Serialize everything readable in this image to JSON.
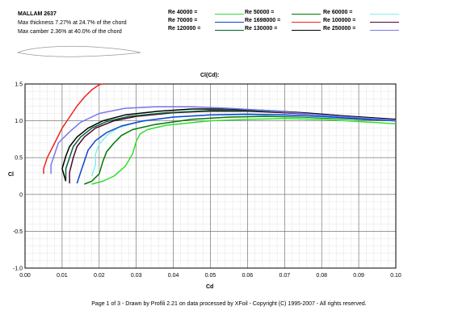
{
  "header": {
    "name": "MALLAM 2637",
    "thickness": "Max thickness 7.27% at 24.7% of the chord",
    "camber": "Max camber 2.36% at 40.0% of the chord"
  },
  "footer": "Page 1 of 3   -   Drawn by Profili 2.21 on data processed by  XFoil - Copyright (C) 1995-2007 - All rights reserved.",
  "chart_data": {
    "type": "line",
    "title": "Cl(Cd):",
    "xlabel": "Cd",
    "ylabel": "Cl",
    "xlim": [
      0.0,
      0.1
    ],
    "ylim": [
      -1.0,
      1.5
    ],
    "xticks": [
      "0.00",
      "0.01",
      "0.02",
      "0.03",
      "0.04",
      "0.05",
      "0.06",
      "0.07",
      "0.08",
      "0.09",
      "0.10"
    ],
    "yticks": [
      "1.5",
      "1.0",
      "0.5",
      "0",
      "-0.5",
      "-1.0"
    ],
    "grid": true,
    "series": [
      {
        "name": "Re 40000 =",
        "color": "#33dd33",
        "points": [
          [
            0.018,
            0.14
          ],
          [
            0.021,
            0.18
          ],
          [
            0.024,
            0.25
          ],
          [
            0.027,
            0.38
          ],
          [
            0.029,
            0.55
          ],
          [
            0.03,
            0.72
          ],
          [
            0.031,
            0.82
          ],
          [
            0.033,
            0.88
          ],
          [
            0.038,
            0.94
          ],
          [
            0.05,
            1.0
          ],
          [
            0.06,
            1.02
          ],
          [
            0.07,
            1.03
          ],
          [
            0.08,
            1.02
          ],
          [
            0.09,
            0.99
          ],
          [
            0.1,
            0.96
          ]
        ]
      },
      {
        "name": "Re 50000 =",
        "color": "#007700",
        "points": [
          [
            0.016,
            0.14
          ],
          [
            0.018,
            0.18
          ],
          [
            0.02,
            0.28
          ],
          [
            0.021,
            0.45
          ],
          [
            0.022,
            0.58
          ],
          [
            0.024,
            0.7
          ],
          [
            0.026,
            0.8
          ],
          [
            0.029,
            0.88
          ],
          [
            0.035,
            0.95
          ],
          [
            0.045,
            1.02
          ],
          [
            0.055,
            1.05
          ],
          [
            0.065,
            1.06
          ],
          [
            0.075,
            1.05
          ],
          [
            0.085,
            1.03
          ],
          [
            0.1,
            1.0
          ]
        ]
      },
      {
        "name": "Re 60000 =",
        "color": "#88eeee",
        "points": [
          [
            0.018,
            0.25
          ],
          [
            0.019,
            0.4
          ],
          [
            0.019,
            0.55
          ],
          [
            0.02,
            0.68
          ],
          [
            0.022,
            0.8
          ],
          [
            0.025,
            0.9
          ],
          [
            0.03,
            0.98
          ],
          [
            0.04,
            1.05
          ],
          [
            0.05,
            1.08
          ],
          [
            0.06,
            1.08
          ],
          [
            0.07,
            1.07
          ],
          [
            0.08,
            1.05
          ],
          [
            0.09,
            1.03
          ],
          [
            0.1,
            1.0
          ]
        ]
      },
      {
        "name": "Re 70000 =",
        "color": "#1144cc",
        "points": [
          [
            0.014,
            0.15
          ],
          [
            0.015,
            0.3
          ],
          [
            0.016,
            0.45
          ],
          [
            0.017,
            0.6
          ],
          [
            0.019,
            0.73
          ],
          [
            0.022,
            0.84
          ],
          [
            0.026,
            0.93
          ],
          [
            0.032,
            1.0
          ],
          [
            0.04,
            1.05
          ],
          [
            0.05,
            1.08
          ],
          [
            0.06,
            1.09
          ],
          [
            0.07,
            1.08
          ],
          [
            0.08,
            1.06
          ],
          [
            0.09,
            1.03
          ],
          [
            0.1,
            1.0
          ]
        ]
      },
      {
        "name": "Re 1698000 =",
        "color": "#ee2222",
        "points": [
          [
            0.005,
            0.28
          ],
          [
            0.005,
            0.35
          ],
          [
            0.006,
            0.5
          ],
          [
            0.008,
            0.7
          ],
          [
            0.01,
            0.9
          ],
          [
            0.012,
            1.05
          ],
          [
            0.014,
            1.2
          ],
          [
            0.016,
            1.32
          ],
          [
            0.018,
            1.42
          ],
          [
            0.02,
            1.49
          ],
          [
            0.021,
            1.5
          ]
        ]
      },
      {
        "name": "Re 100000 =",
        "color": "#550033",
        "points": [
          [
            0.012,
            0.15
          ],
          [
            0.012,
            0.3
          ],
          [
            0.013,
            0.5
          ],
          [
            0.014,
            0.65
          ],
          [
            0.016,
            0.78
          ],
          [
            0.019,
            0.9
          ],
          [
            0.024,
            1.0
          ],
          [
            0.03,
            1.06
          ],
          [
            0.04,
            1.11
          ],
          [
            0.05,
            1.13
          ],
          [
            0.06,
            1.13
          ],
          [
            0.07,
            1.11
          ],
          [
            0.08,
            1.08
          ],
          [
            0.09,
            1.05
          ],
          [
            0.1,
            1.01
          ]
        ]
      },
      {
        "name": "Re 120000 =",
        "color": "#006633",
        "points": [
          [
            0.011,
            0.2
          ],
          [
            0.011,
            0.35
          ],
          [
            0.012,
            0.5
          ],
          [
            0.013,
            0.65
          ],
          [
            0.015,
            0.78
          ],
          [
            0.018,
            0.9
          ],
          [
            0.022,
            0.99
          ],
          [
            0.028,
            1.06
          ],
          [
            0.038,
            1.11
          ],
          [
            0.05,
            1.14
          ],
          [
            0.06,
            1.14
          ],
          [
            0.07,
            1.12
          ],
          [
            0.08,
            1.09
          ],
          [
            0.09,
            1.05
          ],
          [
            0.1,
            1.01
          ]
        ]
      },
      {
        "name": "Re 130000 =",
        "color": "#000000",
        "points": [
          [
            0.011,
            0.18
          ],
          [
            0.01,
            0.35
          ],
          [
            0.011,
            0.52
          ],
          [
            0.012,
            0.65
          ],
          [
            0.014,
            0.78
          ],
          [
            0.017,
            0.9
          ],
          [
            0.021,
            1.0
          ],
          [
            0.027,
            1.08
          ],
          [
            0.036,
            1.13
          ],
          [
            0.045,
            1.16
          ],
          [
            0.055,
            1.16
          ],
          [
            0.065,
            1.14
          ],
          [
            0.075,
            1.11
          ],
          [
            0.085,
            1.07
          ],
          [
            0.1,
            1.02
          ]
        ]
      },
      {
        "name": "Re 250000 =",
        "color": "#7777ee",
        "points": [
          [
            0.007,
            0.28
          ],
          [
            0.007,
            0.4
          ],
          [
            0.008,
            0.55
          ],
          [
            0.009,
            0.7
          ],
          [
            0.012,
            0.85
          ],
          [
            0.015,
            0.98
          ],
          [
            0.02,
            1.1
          ],
          [
            0.027,
            1.17
          ],
          [
            0.035,
            1.19
          ],
          [
            0.045,
            1.19
          ],
          [
            0.055,
            1.17
          ],
          [
            0.065,
            1.14
          ],
          [
            0.075,
            1.1
          ],
          [
            0.085,
            1.06
          ],
          [
            0.1,
            1.01
          ]
        ]
      }
    ]
  }
}
